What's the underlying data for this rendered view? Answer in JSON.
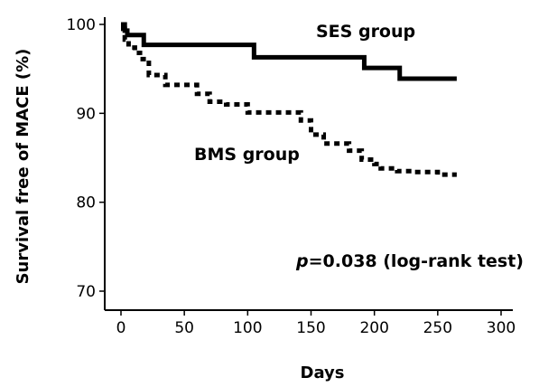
{
  "chart_data": {
    "type": "line",
    "step": true,
    "xlabel": "Days",
    "ylabel": "Survival free of MACE (%)",
    "xlim": [
      0,
      300
    ],
    "ylim": [
      70,
      100
    ],
    "xticks": [
      0,
      50,
      100,
      150,
      200,
      250,
      300
    ],
    "yticks": [
      70,
      80,
      90,
      100
    ],
    "grid": false,
    "series": [
      {
        "name": "SES group",
        "style": "solid",
        "x": [
          0,
          3,
          5,
          18,
          105,
          192,
          220,
          265
        ],
        "y": [
          100,
          99.3,
          98.8,
          97.7,
          96.3,
          95.1,
          93.9,
          93.9
        ]
      },
      {
        "name": "BMS group",
        "style": "dotted",
        "x": [
          0,
          3,
          6,
          11,
          15,
          22,
          35,
          60,
          70,
          83,
          100,
          125,
          142,
          150,
          160,
          180,
          190,
          200,
          205,
          218,
          232,
          250,
          265
        ],
        "y": [
          99.5,
          98.3,
          97.4,
          96.8,
          96.1,
          94.3,
          93.2,
          92.2,
          91.3,
          91.0,
          90.1,
          90.1,
          89.2,
          87.6,
          86.6,
          85.8,
          84.8,
          84.3,
          83.8,
          83.5,
          83.4,
          83.1,
          83.1
        ]
      }
    ],
    "annotation": {
      "italic_part": "p",
      "text": "=0.038 (log-rank test)"
    }
  }
}
